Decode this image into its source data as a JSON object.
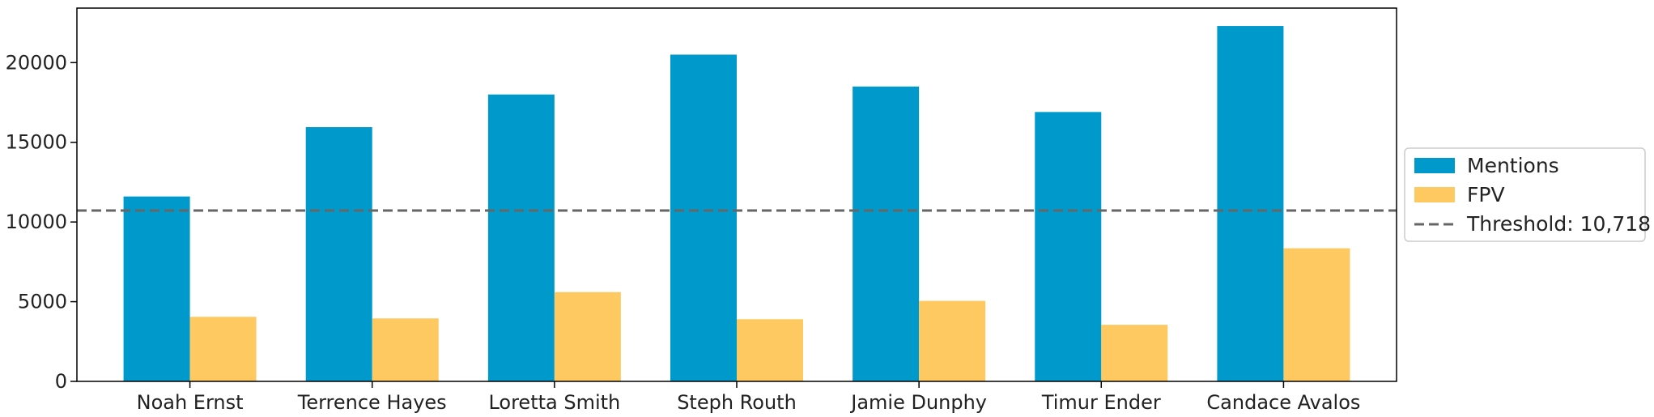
{
  "chart_data": {
    "type": "bar",
    "title": "",
    "xlabel": "",
    "ylabel": "",
    "categories": [
      "Noah Ernst",
      "Terrence Hayes",
      "Loretta Smith",
      "Steph Routh",
      "Jamie Dunphy",
      "Timur Ender",
      "Candace Avalos"
    ],
    "series": [
      {
        "name": "Mentions",
        "color": "#0099CC",
        "values": [
          11600,
          15950,
          18000,
          20500,
          18500,
          16900,
          22300
        ]
      },
      {
        "name": "FPV",
        "color": "#FDC960",
        "values": [
          4050,
          3950,
          5600,
          3900,
          5050,
          3550,
          8350
        ]
      }
    ],
    "threshold": {
      "label": "Threshold: 10,718",
      "value": 10718,
      "color": "#666666",
      "style": "dashed"
    },
    "ylim": [
      0,
      23420
    ],
    "yticks": [
      0,
      5000,
      10000,
      15000,
      20000
    ],
    "ytick_labels": [
      "0",
      "5000",
      "10000",
      "15000",
      "20000"
    ],
    "grid": false,
    "legend_position": "right"
  }
}
